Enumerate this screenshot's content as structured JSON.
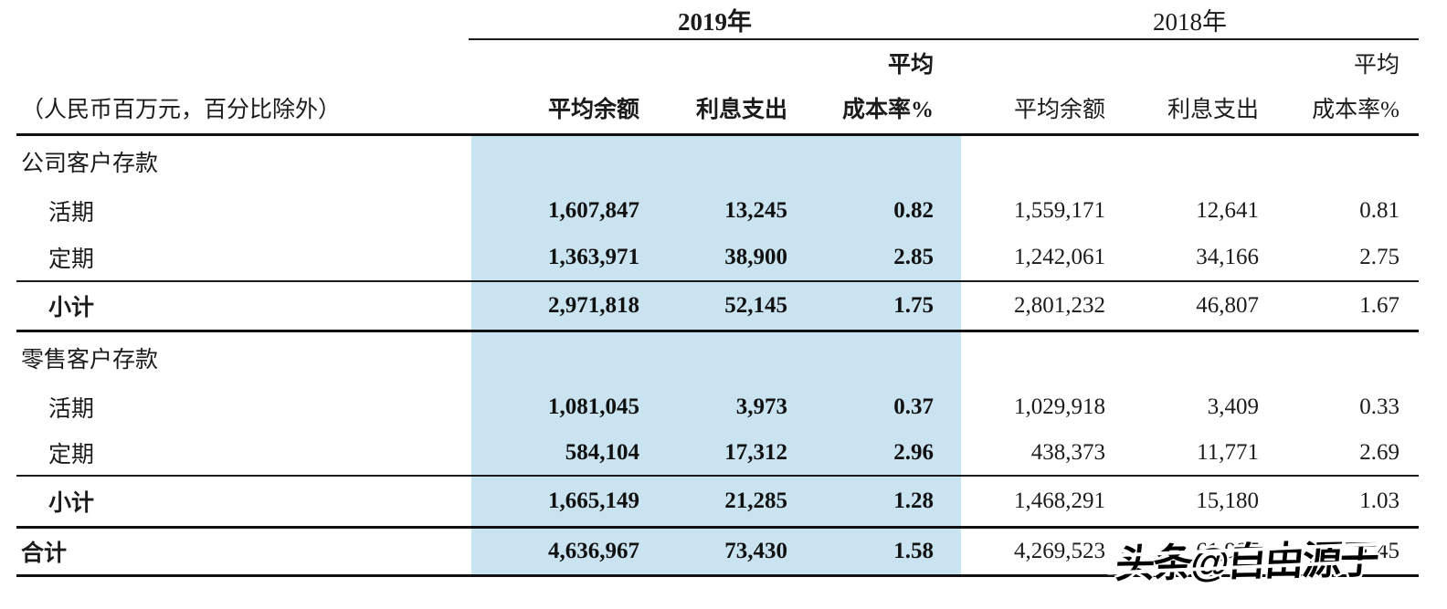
{
  "meta": {
    "unit_note": "（人民币百万元，百分比除外）"
  },
  "header": {
    "year_2019": "2019年",
    "year_2018": "2018年",
    "cols_2019": {
      "avg_balance": "平均余额",
      "interest_expense": "利息支出",
      "avg_cost_line1": "平均",
      "avg_cost_line2": "成本率%"
    },
    "cols_2018": {
      "avg_balance": "平均余额",
      "interest_expense": "利息支出",
      "avg_cost_line1": "平均",
      "avg_cost_line2": "成本率%"
    }
  },
  "rows": [
    {
      "label": "公司客户存款"
    },
    {
      "label": "活期",
      "values": [
        "1,607,847",
        "13,245",
        "0.82",
        "1,559,171",
        "12,641",
        "0.81"
      ]
    },
    {
      "label": "定期",
      "values": [
        "1,363,971",
        "38,900",
        "2.85",
        "1,242,061",
        "34,166",
        "2.75"
      ]
    },
    {
      "label": "小计",
      "values": [
        "2,971,818",
        "52,145",
        "1.75",
        "2,801,232",
        "46,807",
        "1.67"
      ]
    },
    {
      "label": "零售客户存款"
    },
    {
      "label": "活期",
      "values": [
        "1,081,045",
        "3,973",
        "0.37",
        "1,029,918",
        "3,409",
        "0.33"
      ]
    },
    {
      "label": "定期",
      "values": [
        "584,104",
        "17,312",
        "2.96",
        "438,373",
        "11,771",
        "2.69"
      ]
    },
    {
      "label": "小计",
      "values": [
        "1,665,149",
        "21,285",
        "1.28",
        "1,468,291",
        "15,180",
        "1.03"
      ]
    },
    {
      "label": "合计",
      "values": [
        "4,636,967",
        "73,430",
        "1.58",
        "4,269,523",
        "61,987",
        "1.45"
      ]
    }
  ],
  "watermark": {
    "text": "头条@自由源于"
  },
  "colors": {
    "highlight_band": "#c9e4f0",
    "text": "#1b1b1b",
    "rule": "#1a1a1a"
  }
}
